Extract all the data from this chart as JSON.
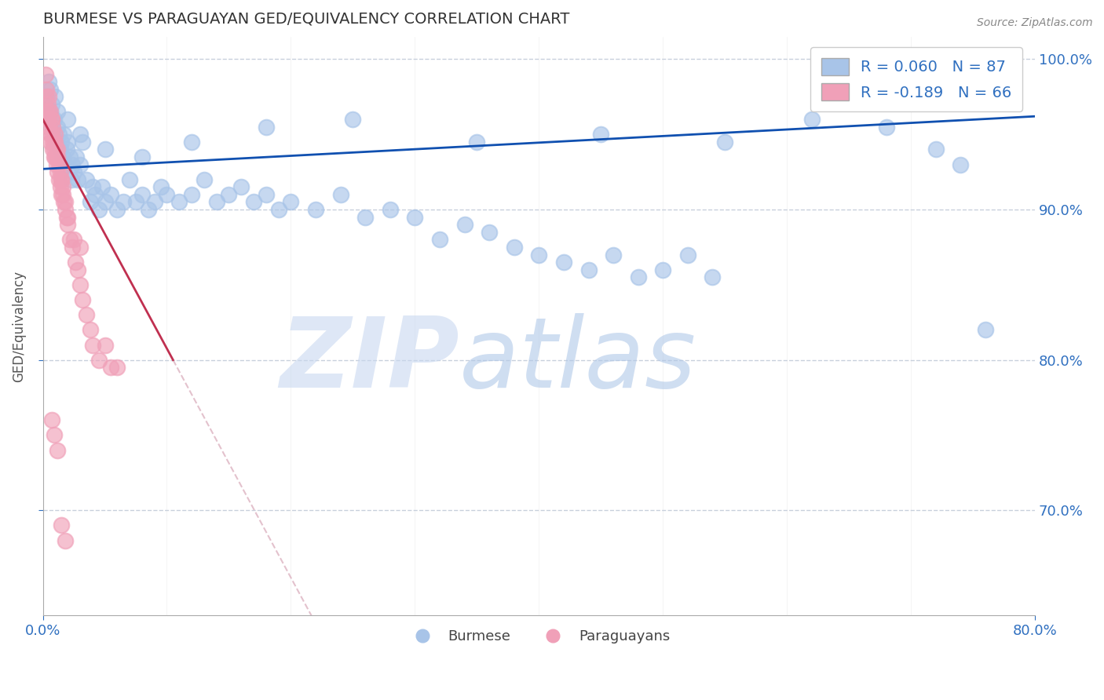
{
  "title": "BURMESE VS PARAGUAYAN GED/EQUIVALENCY CORRELATION CHART",
  "source_text": "Source: ZipAtlas.com",
  "ylabel": "GED/Equivalency",
  "xlim": [
    0.0,
    0.8
  ],
  "ylim": [
    0.63,
    1.015
  ],
  "xtick_labels": [
    "0.0%",
    "80.0%"
  ],
  "xtick_positions": [
    0.0,
    0.8
  ],
  "ytick_labels": [
    "70.0%",
    "80.0%",
    "90.0%",
    "100.0%"
  ],
  "ytick_positions": [
    0.7,
    0.8,
    0.9,
    1.0
  ],
  "burmese_color": "#a8c4e8",
  "paraguayan_color": "#f0a0b8",
  "trend_blue": "#1050b0",
  "trend_pink": "#c03050",
  "trend_pink_dashed": "#d8a8b8",
  "legend_blue_label": "R = 0.060   N = 87",
  "legend_pink_label": "R = -0.189   N = 66",
  "watermark_zip": "ZIP",
  "watermark_atlas": "atlas",
  "watermark_color_zip": "#c8d8f0",
  "watermark_color_atlas": "#b0c8e8",
  "title_color": "#333333",
  "axis_color": "#3070c0",
  "tick_color": "#3070c0",
  "grid_color": "#c8d0dc",
  "background_color": "#ffffff",
  "burmese_x": [
    0.003,
    0.004,
    0.005,
    0.006,
    0.007,
    0.008,
    0.009,
    0.01,
    0.011,
    0.012,
    0.013,
    0.014,
    0.015,
    0.016,
    0.017,
    0.018,
    0.019,
    0.02,
    0.022,
    0.023,
    0.024,
    0.025,
    0.027,
    0.028,
    0.03,
    0.032,
    0.035,
    0.038,
    0.04,
    0.042,
    0.045,
    0.048,
    0.05,
    0.055,
    0.06,
    0.065,
    0.07,
    0.075,
    0.08,
    0.085,
    0.09,
    0.095,
    0.1,
    0.11,
    0.12,
    0.13,
    0.14,
    0.15,
    0.16,
    0.17,
    0.18,
    0.19,
    0.2,
    0.22,
    0.24,
    0.26,
    0.28,
    0.3,
    0.32,
    0.34,
    0.36,
    0.38,
    0.4,
    0.42,
    0.44,
    0.46,
    0.48,
    0.5,
    0.52,
    0.54,
    0.006,
    0.012,
    0.02,
    0.03,
    0.05,
    0.08,
    0.12,
    0.18,
    0.25,
    0.35,
    0.45,
    0.55,
    0.62,
    0.68,
    0.72,
    0.74,
    0.76
  ],
  "burmese_y": [
    0.975,
    0.96,
    0.985,
    0.965,
    0.97,
    0.955,
    0.96,
    0.975,
    0.945,
    0.955,
    0.95,
    0.94,
    0.945,
    0.935,
    0.95,
    0.93,
    0.94,
    0.945,
    0.935,
    0.92,
    0.93,
    0.925,
    0.935,
    0.92,
    0.93,
    0.945,
    0.92,
    0.905,
    0.915,
    0.91,
    0.9,
    0.915,
    0.905,
    0.91,
    0.9,
    0.905,
    0.92,
    0.905,
    0.91,
    0.9,
    0.905,
    0.915,
    0.91,
    0.905,
    0.91,
    0.92,
    0.905,
    0.91,
    0.915,
    0.905,
    0.91,
    0.9,
    0.905,
    0.9,
    0.91,
    0.895,
    0.9,
    0.895,
    0.88,
    0.89,
    0.885,
    0.875,
    0.87,
    0.865,
    0.86,
    0.87,
    0.855,
    0.86,
    0.87,
    0.855,
    0.98,
    0.965,
    0.96,
    0.95,
    0.94,
    0.935,
    0.945,
    0.955,
    0.96,
    0.945,
    0.95,
    0.945,
    0.96,
    0.955,
    0.94,
    0.93,
    0.82
  ],
  "paraguayan_x": [
    0.002,
    0.003,
    0.003,
    0.004,
    0.004,
    0.005,
    0.005,
    0.006,
    0.006,
    0.007,
    0.007,
    0.008,
    0.008,
    0.009,
    0.009,
    0.01,
    0.01,
    0.011,
    0.011,
    0.012,
    0.012,
    0.013,
    0.014,
    0.015,
    0.015,
    0.016,
    0.017,
    0.018,
    0.019,
    0.02,
    0.022,
    0.024,
    0.026,
    0.028,
    0.03,
    0.032,
    0.035,
    0.038,
    0.04,
    0.045,
    0.05,
    0.055,
    0.06,
    0.003,
    0.004,
    0.005,
    0.006,
    0.007,
    0.008,
    0.009,
    0.01,
    0.011,
    0.012,
    0.013,
    0.014,
    0.015,
    0.016,
    0.018,
    0.02,
    0.025,
    0.03,
    0.007,
    0.009,
    0.012,
    0.015,
    0.018
  ],
  "paraguayan_y": [
    0.99,
    0.975,
    0.965,
    0.97,
    0.96,
    0.975,
    0.955,
    0.965,
    0.945,
    0.96,
    0.95,
    0.94,
    0.955,
    0.935,
    0.945,
    0.95,
    0.935,
    0.93,
    0.94,
    0.925,
    0.935,
    0.92,
    0.915,
    0.92,
    0.91,
    0.915,
    0.905,
    0.9,
    0.895,
    0.89,
    0.88,
    0.875,
    0.865,
    0.86,
    0.85,
    0.84,
    0.83,
    0.82,
    0.81,
    0.8,
    0.81,
    0.795,
    0.795,
    0.98,
    0.96,
    0.965,
    0.95,
    0.96,
    0.945,
    0.94,
    0.945,
    0.935,
    0.94,
    0.93,
    0.925,
    0.92,
    0.91,
    0.905,
    0.895,
    0.88,
    0.875,
    0.76,
    0.75,
    0.74,
    0.69,
    0.68
  ]
}
